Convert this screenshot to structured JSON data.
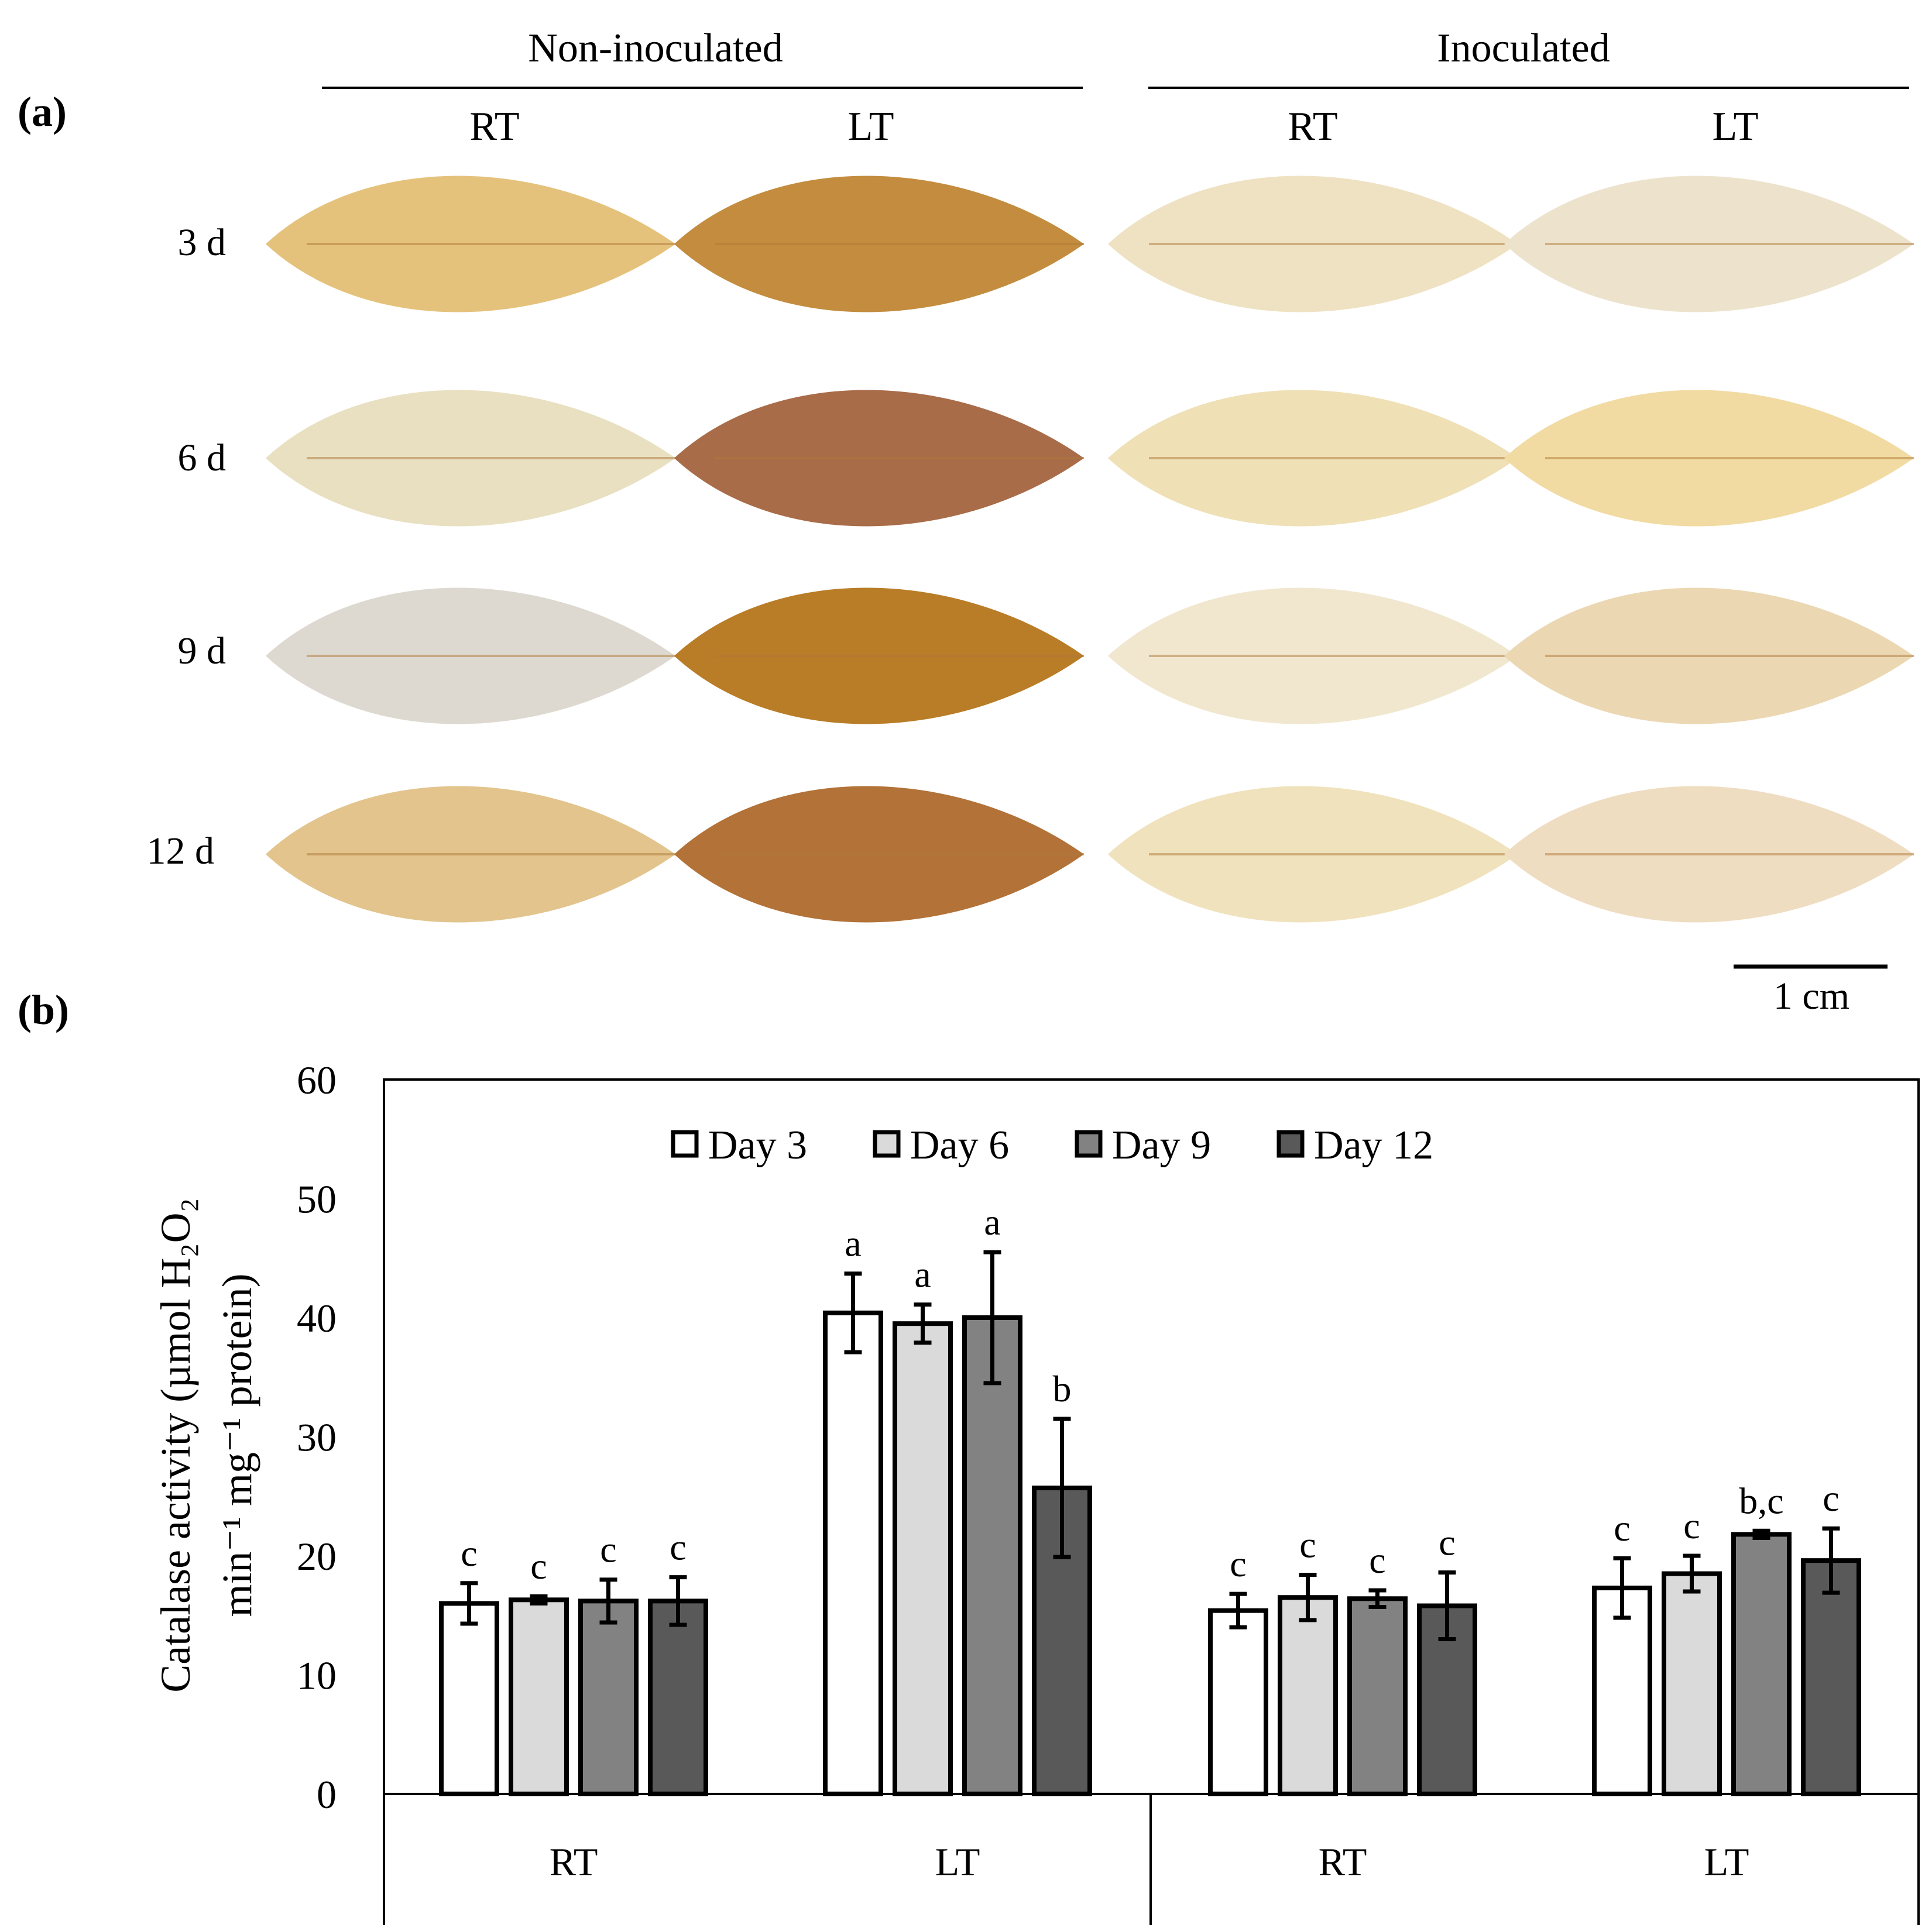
{
  "panel_a": {
    "label": "(a)",
    "groups": [
      "Non-inoculated",
      "Inoculated"
    ],
    "columns": [
      "RT",
      "LT",
      "RT",
      "LT"
    ],
    "rows": [
      "3 d",
      "6 d",
      "9 d",
      "12 d"
    ],
    "leaf_colors": [
      [
        "#e5c27c",
        "#c38c3e",
        "#efe2c2",
        "#ede3cc"
      ],
      [
        "#e9e0c2",
        "#a96c48",
        "#efe0b6",
        "#f1dba2"
      ],
      [
        "#ddd9d1",
        "#b97c27",
        "#f1e7cf",
        "#ebd8b3"
      ],
      [
        "#e2c48c",
        "#b27238",
        "#f0e2bc",
        "#efddc2"
      ]
    ],
    "scale_bar": "1 cm"
  },
  "panel_b": {
    "label": "(b)"
  },
  "chart_data": {
    "type": "bar",
    "title": "",
    "ylabel_line1": "Catalase activity (µmol H₂O₂",
    "ylabel_line2": "min⁻¹ mg⁻¹ protein)",
    "xlabel": "",
    "ylim": [
      0,
      60
    ],
    "yticks": [
      "0",
      "10",
      "20",
      "30",
      "40",
      "50",
      "60"
    ],
    "categories": [
      "RT",
      "LT",
      "RT",
      "LT"
    ],
    "category_groups": [
      "Non-inoculated",
      "Non-inoculated",
      "Inoculated",
      "Inoculated"
    ],
    "legend_position": "top-center",
    "grid": false,
    "series": [
      {
        "name": "Day 3",
        "color": "#ffffff",
        "values": [
          16.0,
          40.4,
          15.4,
          17.3
        ],
        "errors": [
          1.7,
          3.3,
          1.4,
          2.5
        ],
        "letters": [
          "c",
          "a",
          "c",
          "c"
        ]
      },
      {
        "name": "Day 6",
        "color": "#dadada",
        "values": [
          16.3,
          39.5,
          16.5,
          18.5
        ],
        "errors": [
          0.3,
          1.6,
          1.9,
          1.5
        ],
        "letters": [
          "c",
          "a",
          "c",
          "c"
        ]
      },
      {
        "name": "Day 9",
        "color": "#828282",
        "values": [
          16.2,
          40.0,
          16.4,
          21.8
        ],
        "errors": [
          1.8,
          5.5,
          0.7,
          0.3
        ],
        "letters": [
          "c",
          "a",
          "c",
          "b,c"
        ]
      },
      {
        "name": "Day 12",
        "color": "#595959",
        "values": [
          16.2,
          25.7,
          15.8,
          19.6
        ],
        "errors": [
          2.0,
          5.8,
          2.8,
          2.7
        ],
        "letters": [
          "c",
          "b",
          "c",
          "c"
        ]
      }
    ]
  }
}
